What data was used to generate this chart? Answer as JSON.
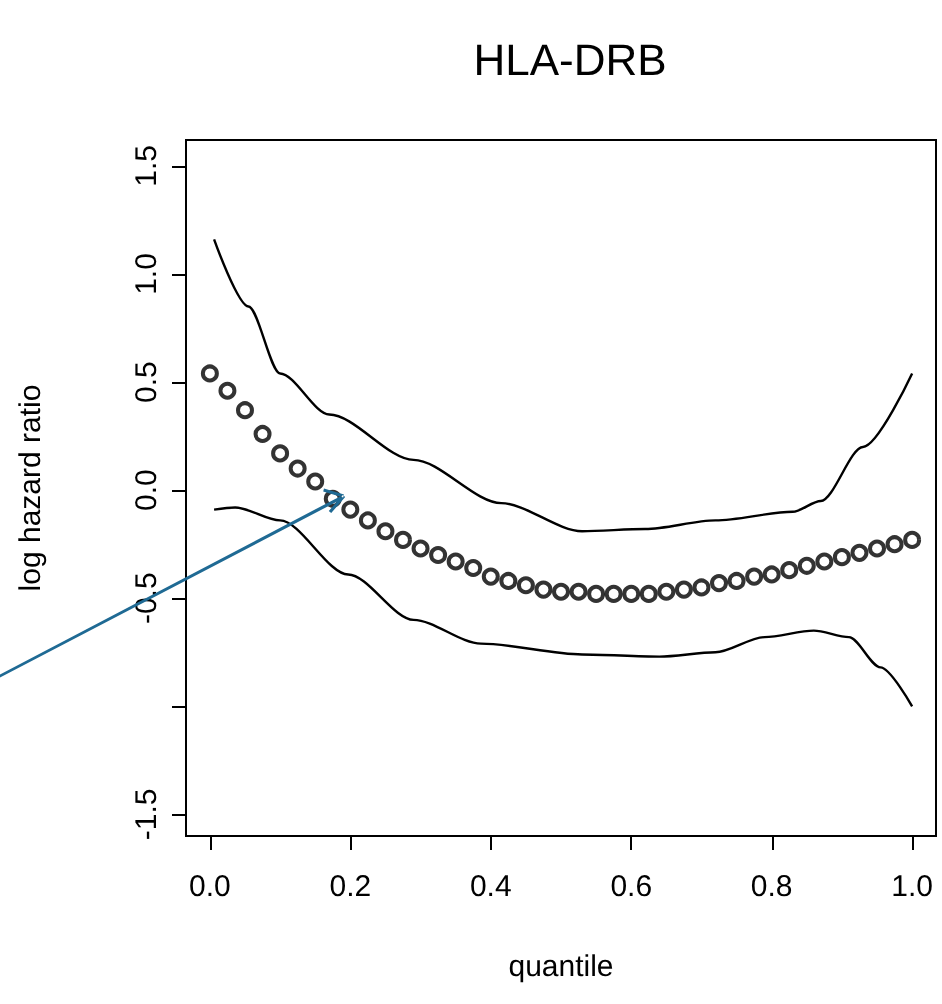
{
  "chart_data": {
    "type": "scatter",
    "title": "HLA-DRB",
    "xlabel": "quantile",
    "ylabel": "log hazard ratio",
    "xlim": [
      -0.034,
      1.034
    ],
    "ylim": [
      -1.6,
      1.62
    ],
    "xticks": [
      {
        "value": 0,
        "label": "0.0"
      },
      {
        "value": 0.2,
        "label": "0.2"
      },
      {
        "value": 0.4,
        "label": "0.4"
      },
      {
        "value": 0.6,
        "label": "0.6"
      },
      {
        "value": 0.8,
        "label": "0.8"
      },
      {
        "value": 1,
        "label": "1.0"
      }
    ],
    "yticks": [
      {
        "value": -1.5,
        "label": "-1.5"
      },
      {
        "value": -1,
        "label": null
      },
      {
        "value": -0.5,
        "label": "-0.5"
      },
      {
        "value": 0,
        "label": "0.0"
      },
      {
        "value": 0.5,
        "label": "0.5"
      },
      {
        "value": 1,
        "label": "1.0"
      },
      {
        "value": 1.5,
        "label": "1.5"
      }
    ],
    "grid": false,
    "series": [
      {
        "type": "scatter",
        "marker": "circle",
        "color": "#000000",
        "x": [
          0,
          0.025,
          0.05,
          0.075,
          0.1,
          0.125,
          0.15,
          0.175,
          0.2,
          0.225,
          0.25,
          0.275,
          0.3,
          0.325,
          0.35,
          0.375,
          0.4,
          0.425,
          0.45,
          0.475,
          0.5,
          0.525,
          0.55,
          0.575,
          0.6,
          0.625,
          0.65,
          0.675,
          0.7,
          0.725,
          0.75,
          0.775,
          0.8,
          0.825,
          0.85,
          0.875,
          0.9,
          0.925,
          0.95,
          0.975,
          1
        ],
        "values": [
          0.54,
          0.46,
          0.37,
          0.26,
          0.17,
          0.1,
          0.04,
          -0.04,
          -0.09,
          -0.14,
          -0.19,
          -0.23,
          -0.27,
          -0.3,
          -0.33,
          -0.36,
          -0.4,
          -0.42,
          -0.44,
          -0.46,
          -0.47,
          -0.47,
          -0.48,
          -0.48,
          -0.48,
          -0.48,
          -0.47,
          -0.46,
          -0.45,
          -0.43,
          -0.42,
          -0.4,
          -0.39,
          -0.37,
          -0.35,
          -0.33,
          -0.31,
          -0.29,
          -0.27,
          -0.25,
          -0.23
        ]
      },
      {
        "type": "line",
        "marker": "none",
        "line_style": "solid",
        "color": "#000000",
        "x": [
          0.006,
          0.055,
          0.1,
          0.17,
          0.29,
          0.415,
          0.53,
          0.62,
          0.72,
          0.83,
          0.87,
          0.93,
          1
        ],
        "values": [
          1.16,
          0.85,
          0.54,
          0.35,
          0.14,
          -0.06,
          -0.19,
          -0.18,
          -0.14,
          -0.1,
          -0.05,
          0.2,
          0.54
        ]
      },
      {
        "type": "line",
        "marker": "none",
        "line_style": "solid",
        "color": "#000000",
        "x": [
          0.006,
          0.036,
          0.1,
          0.197,
          0.29,
          0.386,
          0.53,
          0.64,
          0.72,
          0.79,
          0.86,
          0.91,
          0.955,
          1
        ],
        "values": [
          -0.09,
          -0.08,
          -0.14,
          -0.39,
          -0.6,
          -0.71,
          -0.76,
          -0.77,
          -0.75,
          -0.68,
          -0.65,
          -0.68,
          -0.82,
          -1
        ]
      }
    ]
  }
}
